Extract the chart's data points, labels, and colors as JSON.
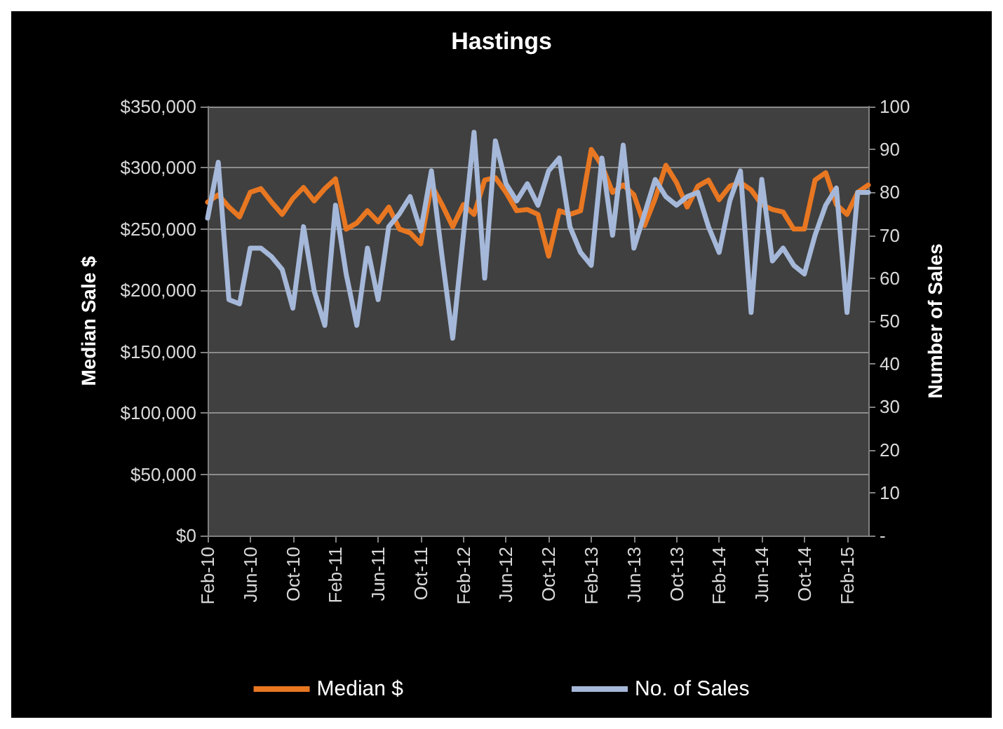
{
  "chart_data": {
    "type": "line",
    "title": "Hastings",
    "ylabel": "Median Sale $",
    "y2label": "Number of Sales",
    "categories": [
      "Feb-10",
      null,
      null,
      null,
      "Jun-10",
      null,
      null,
      null,
      "Oct-10",
      null,
      null,
      null,
      "Feb-11",
      null,
      null,
      null,
      "Jun-11",
      null,
      null,
      null,
      "Oct-11",
      null,
      null,
      null,
      "Feb-12",
      null,
      null,
      null,
      "Jun-12",
      null,
      null,
      null,
      "Oct-12",
      null,
      null,
      null,
      "Feb-13",
      null,
      null,
      null,
      "Jun-13",
      null,
      null,
      null,
      "Oct-13",
      null,
      null,
      null,
      "Feb-14",
      null,
      null,
      null,
      "Jun-14",
      null,
      null,
      null,
      "Oct-14",
      null,
      null,
      null,
      "Feb-15",
      null,
      null
    ],
    "series": [
      {
        "name": "Median $",
        "color": "#e87722",
        "values": [
          272000,
          278000,
          268000,
          260000,
          280000,
          283000,
          272000,
          262000,
          275000,
          284000,
          273000,
          283000,
          291000,
          250000,
          255000,
          265000,
          256000,
          268000,
          250000,
          247000,
          238000,
          286000,
          270000,
          252000,
          270000,
          262000,
          290000,
          292000,
          280000,
          265000,
          266000,
          262000,
          228000,
          265000,
          262000,
          265000,
          315000,
          302000,
          280000,
          286000,
          278000,
          253000,
          275000,
          302000,
          288000,
          268000,
          285000,
          290000,
          274000,
          285000,
          288000,
          282000,
          270000,
          266000,
          264000,
          250000,
          250000,
          290000,
          296000,
          270000,
          262000,
          280000,
          286000
        ]
      },
      {
        "name": "No. of Sales",
        "color": "#a5b8d9",
        "axis": "y2",
        "values": [
          74,
          87,
          55,
          54,
          67,
          67,
          65,
          62,
          53,
          72,
          57,
          49,
          77,
          61,
          49,
          67,
          55,
          72,
          75,
          79,
          71,
          85,
          65,
          46,
          70,
          94,
          60,
          92,
          82,
          78,
          82,
          77,
          85,
          88,
          72,
          66,
          63,
          88,
          70,
          91,
          67,
          75,
          83,
          79,
          77,
          79,
          80,
          72,
          66,
          78,
          85,
          52,
          83,
          64,
          67,
          63,
          61,
          70,
          77,
          81,
          52,
          80,
          80
        ]
      }
    ],
    "ylim": [
      0,
      350000
    ],
    "yticks": [
      {
        "value": 0,
        "label": "$0"
      },
      {
        "value": 50000,
        "label": "$50,000"
      },
      {
        "value": 100000,
        "label": "$100,000"
      },
      {
        "value": 150000,
        "label": "$150,000"
      },
      {
        "value": 200000,
        "label": "$200,000"
      },
      {
        "value": 250000,
        "label": "$250,000"
      },
      {
        "value": 300000,
        "label": "$300,000"
      },
      {
        "value": 350000,
        "label": "$350,000"
      }
    ],
    "y2lim": [
      0,
      100
    ],
    "y2ticks": [
      {
        "value": 0,
        "label": "-"
      },
      10,
      20,
      30,
      40,
      50,
      60,
      70,
      80,
      90,
      100
    ],
    "grid": "y",
    "legend": "bottom",
    "marker": "none",
    "line_style": "solid"
  }
}
